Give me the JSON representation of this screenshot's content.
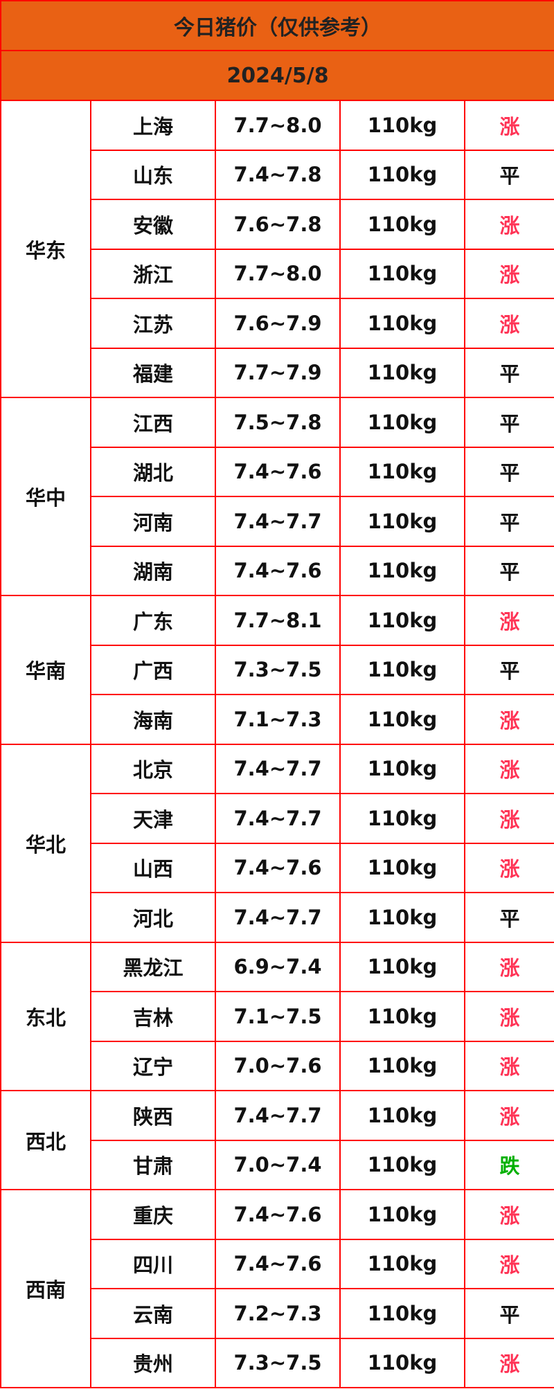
{
  "title": "今日猪价（仅供参考）",
  "date": "2024/5/8",
  "colors": {
    "header_bg": "#e96114",
    "border": "#ff0000",
    "up": "#ff3355",
    "flat": "#111111",
    "down": "#00b000"
  },
  "regions": [
    {
      "name": "华东",
      "rows": [
        {
          "province": "上海",
          "price": "7.7~8.0",
          "weight": "110kg",
          "trend": "涨",
          "dir": "up"
        },
        {
          "province": "山东",
          "price": "7.4~7.8",
          "weight": "110kg",
          "trend": "平",
          "dir": "flat"
        },
        {
          "province": "安徽",
          "price": "7.6~7.8",
          "weight": "110kg",
          "trend": "涨",
          "dir": "up"
        },
        {
          "province": "浙江",
          "price": "7.7~8.0",
          "weight": "110kg",
          "trend": "涨",
          "dir": "up"
        },
        {
          "province": "江苏",
          "price": "7.6~7.9",
          "weight": "110kg",
          "trend": "涨",
          "dir": "up"
        },
        {
          "province": "福建",
          "price": "7.7~7.9",
          "weight": "110kg",
          "trend": "平",
          "dir": "flat"
        }
      ]
    },
    {
      "name": "华中",
      "rows": [
        {
          "province": "江西",
          "price": "7.5~7.8",
          "weight": "110kg",
          "trend": "平",
          "dir": "flat"
        },
        {
          "province": "湖北",
          "price": "7.4~7.6",
          "weight": "110kg",
          "trend": "平",
          "dir": "flat"
        },
        {
          "province": "河南",
          "price": "7.4~7.7",
          "weight": "110kg",
          "trend": "平",
          "dir": "flat"
        },
        {
          "province": "湖南",
          "price": "7.4~7.6",
          "weight": "110kg",
          "trend": "平",
          "dir": "flat"
        }
      ]
    },
    {
      "name": "华南",
      "rows": [
        {
          "province": "广东",
          "price": "7.7~8.1",
          "weight": "110kg",
          "trend": "涨",
          "dir": "up"
        },
        {
          "province": "广西",
          "price": "7.3~7.5",
          "weight": "110kg",
          "trend": "平",
          "dir": "flat"
        },
        {
          "province": "海南",
          "price": "7.1~7.3",
          "weight": "110kg",
          "trend": "涨",
          "dir": "up"
        }
      ]
    },
    {
      "name": "华北",
      "rows": [
        {
          "province": "北京",
          "price": "7.4~7.7",
          "weight": "110kg",
          "trend": "涨",
          "dir": "up"
        },
        {
          "province": "天津",
          "price": "7.4~7.7",
          "weight": "110kg",
          "trend": "涨",
          "dir": "up"
        },
        {
          "province": "山西",
          "price": "7.4~7.6",
          "weight": "110kg",
          "trend": "涨",
          "dir": "up"
        },
        {
          "province": "河北",
          "price": "7.4~7.7",
          "weight": "110kg",
          "trend": "平",
          "dir": "flat"
        }
      ]
    },
    {
      "name": "东北",
      "rows": [
        {
          "province": "黑龙江",
          "price": "6.9~7.4",
          "weight": "110kg",
          "trend": "涨",
          "dir": "up"
        },
        {
          "province": "吉林",
          "price": "7.1~7.5",
          "weight": "110kg",
          "trend": "涨",
          "dir": "up"
        },
        {
          "province": "辽宁",
          "price": "7.0~7.6",
          "weight": "110kg",
          "trend": "涨",
          "dir": "up"
        }
      ]
    },
    {
      "name": "西北",
      "rows": [
        {
          "province": "陕西",
          "price": "7.4~7.7",
          "weight": "110kg",
          "trend": "涨",
          "dir": "up"
        },
        {
          "province": "甘肃",
          "price": "7.0~7.4",
          "weight": "110kg",
          "trend": "跌",
          "dir": "down"
        }
      ]
    },
    {
      "name": "西南",
      "rows": [
        {
          "province": "重庆",
          "price": "7.4~7.6",
          "weight": "110kg",
          "trend": "涨",
          "dir": "up"
        },
        {
          "province": "四川",
          "price": "7.4~7.6",
          "weight": "110kg",
          "trend": "涨",
          "dir": "up"
        },
        {
          "province": "云南",
          "price": "7.2~7.3",
          "weight": "110kg",
          "trend": "平",
          "dir": "flat"
        },
        {
          "province": "贵州",
          "price": "7.3~7.5",
          "weight": "110kg",
          "trend": "涨",
          "dir": "up"
        }
      ]
    }
  ]
}
